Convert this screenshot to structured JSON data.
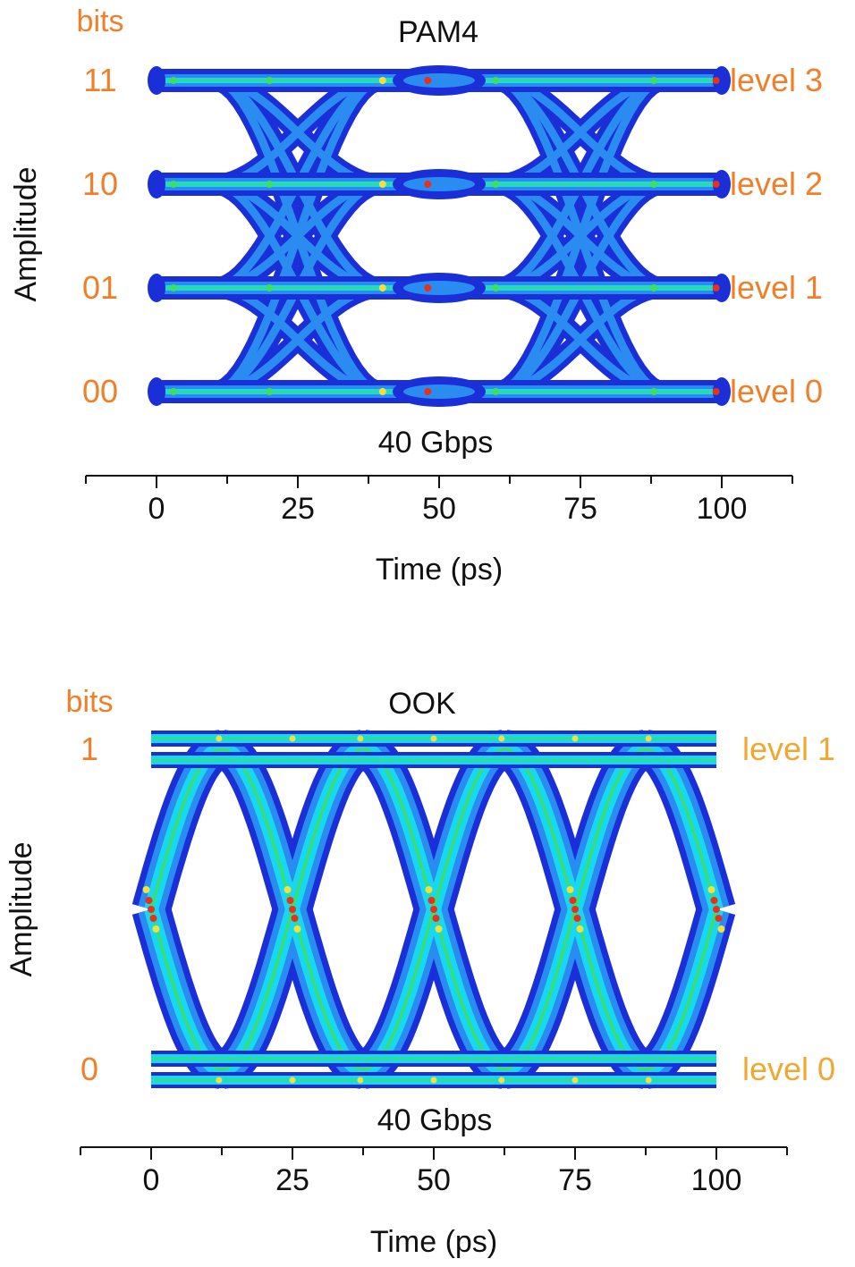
{
  "colors": {
    "bit_label": "#f07f2a",
    "pam4_level_label": "#f07f2a",
    "ook_level_label": "#f0a830",
    "eye_outer": "#1a2fd8",
    "eye_mid": "#2a8cf0",
    "eye_inner": "#18d8f0",
    "eye_hot_green": "#3ce060",
    "eye_hot_yellow": "#f0e040",
    "eye_hot_red": "#e83020",
    "axis": "#111111"
  },
  "chart_data": [
    {
      "type": "line",
      "title": "PAM4",
      "subtitle": "40 Gbps",
      "xlabel": "Time (ps)",
      "ylabel": "Amplitude",
      "xlim": [
        -12.5,
        112.5
      ],
      "x_ticks": [
        "0",
        "25",
        "50",
        "75",
        "100"
      ],
      "y_header": "bits",
      "levels": [
        {
          "bits": "00",
          "label": "level 0",
          "value": 0
        },
        {
          "bits": "01",
          "label": "level 1",
          "value": 1
        },
        {
          "bits": "10",
          "label": "level 2",
          "value": 2
        },
        {
          "bits": "11",
          "label": "level 3",
          "value": 3
        }
      ],
      "unit_interval_ps": 50,
      "crossing_times_ps": [
        25,
        75
      ],
      "grid": false,
      "legend": "none"
    },
    {
      "type": "line",
      "title": "OOK",
      "subtitle": "40 Gbps",
      "xlabel": "Time (ps)",
      "ylabel": "Amplitude",
      "xlim": [
        -12.5,
        112.5
      ],
      "x_ticks": [
        "0",
        "25",
        "50",
        "75",
        "100"
      ],
      "y_header": "bits",
      "levels": [
        {
          "bits": "0",
          "label": "level 0",
          "value": 0
        },
        {
          "bits": "1",
          "label": "level 1",
          "value": 1
        }
      ],
      "unit_interval_ps": 25,
      "crossing_times_ps": [
        0,
        25,
        50,
        75,
        100
      ],
      "grid": false,
      "legend": "none"
    }
  ]
}
